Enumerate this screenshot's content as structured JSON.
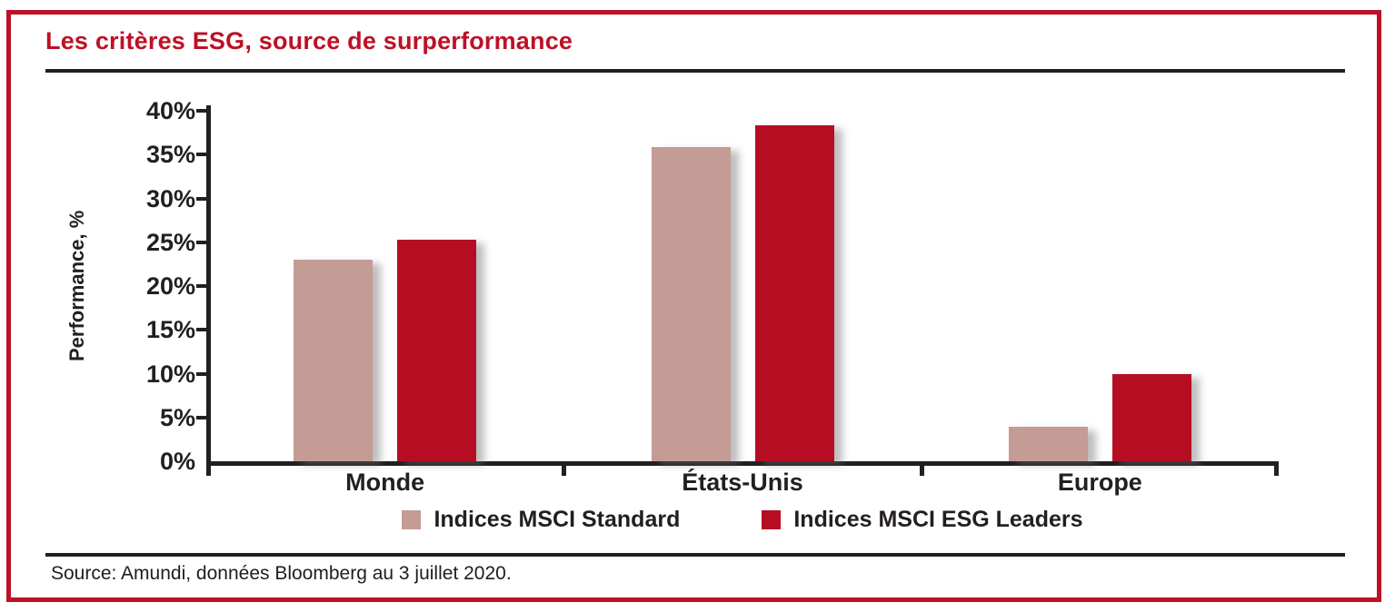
{
  "title": "Les critères ESG, source de surperformance",
  "source": "Source: Amundi, données Bloomberg au 3 juillet 2020.",
  "colors": {
    "accent_red": "#BD1126",
    "axis_black": "#231F20",
    "bar_standard": "#C49B95",
    "bar_esg_leaders": "#B50E23"
  },
  "chart_data": {
    "type": "bar",
    "title": "Les critères ESG, source de surperformance",
    "categories": [
      "Monde",
      "États-Unis",
      "Europe"
    ],
    "series": [
      {
        "name": "Indices MSCI Standard",
        "color": "#C49B95",
        "values": [
          23.0,
          35.9,
          3.9
        ]
      },
      {
        "name": "Indices MSCI ESG Leaders",
        "color": "#B50E23",
        "values": [
          25.3,
          38.3,
          9.9
        ]
      }
    ],
    "xlabel": "",
    "ylabel": "Performance, %",
    "ylim": [
      0,
      40
    ],
    "ytick_step": 5,
    "ytick_labels": [
      "0%",
      "5%",
      "10%",
      "15%",
      "20%",
      "25%",
      "30%",
      "35%",
      "40%"
    ],
    "grid": false,
    "legend_position": "bottom"
  }
}
